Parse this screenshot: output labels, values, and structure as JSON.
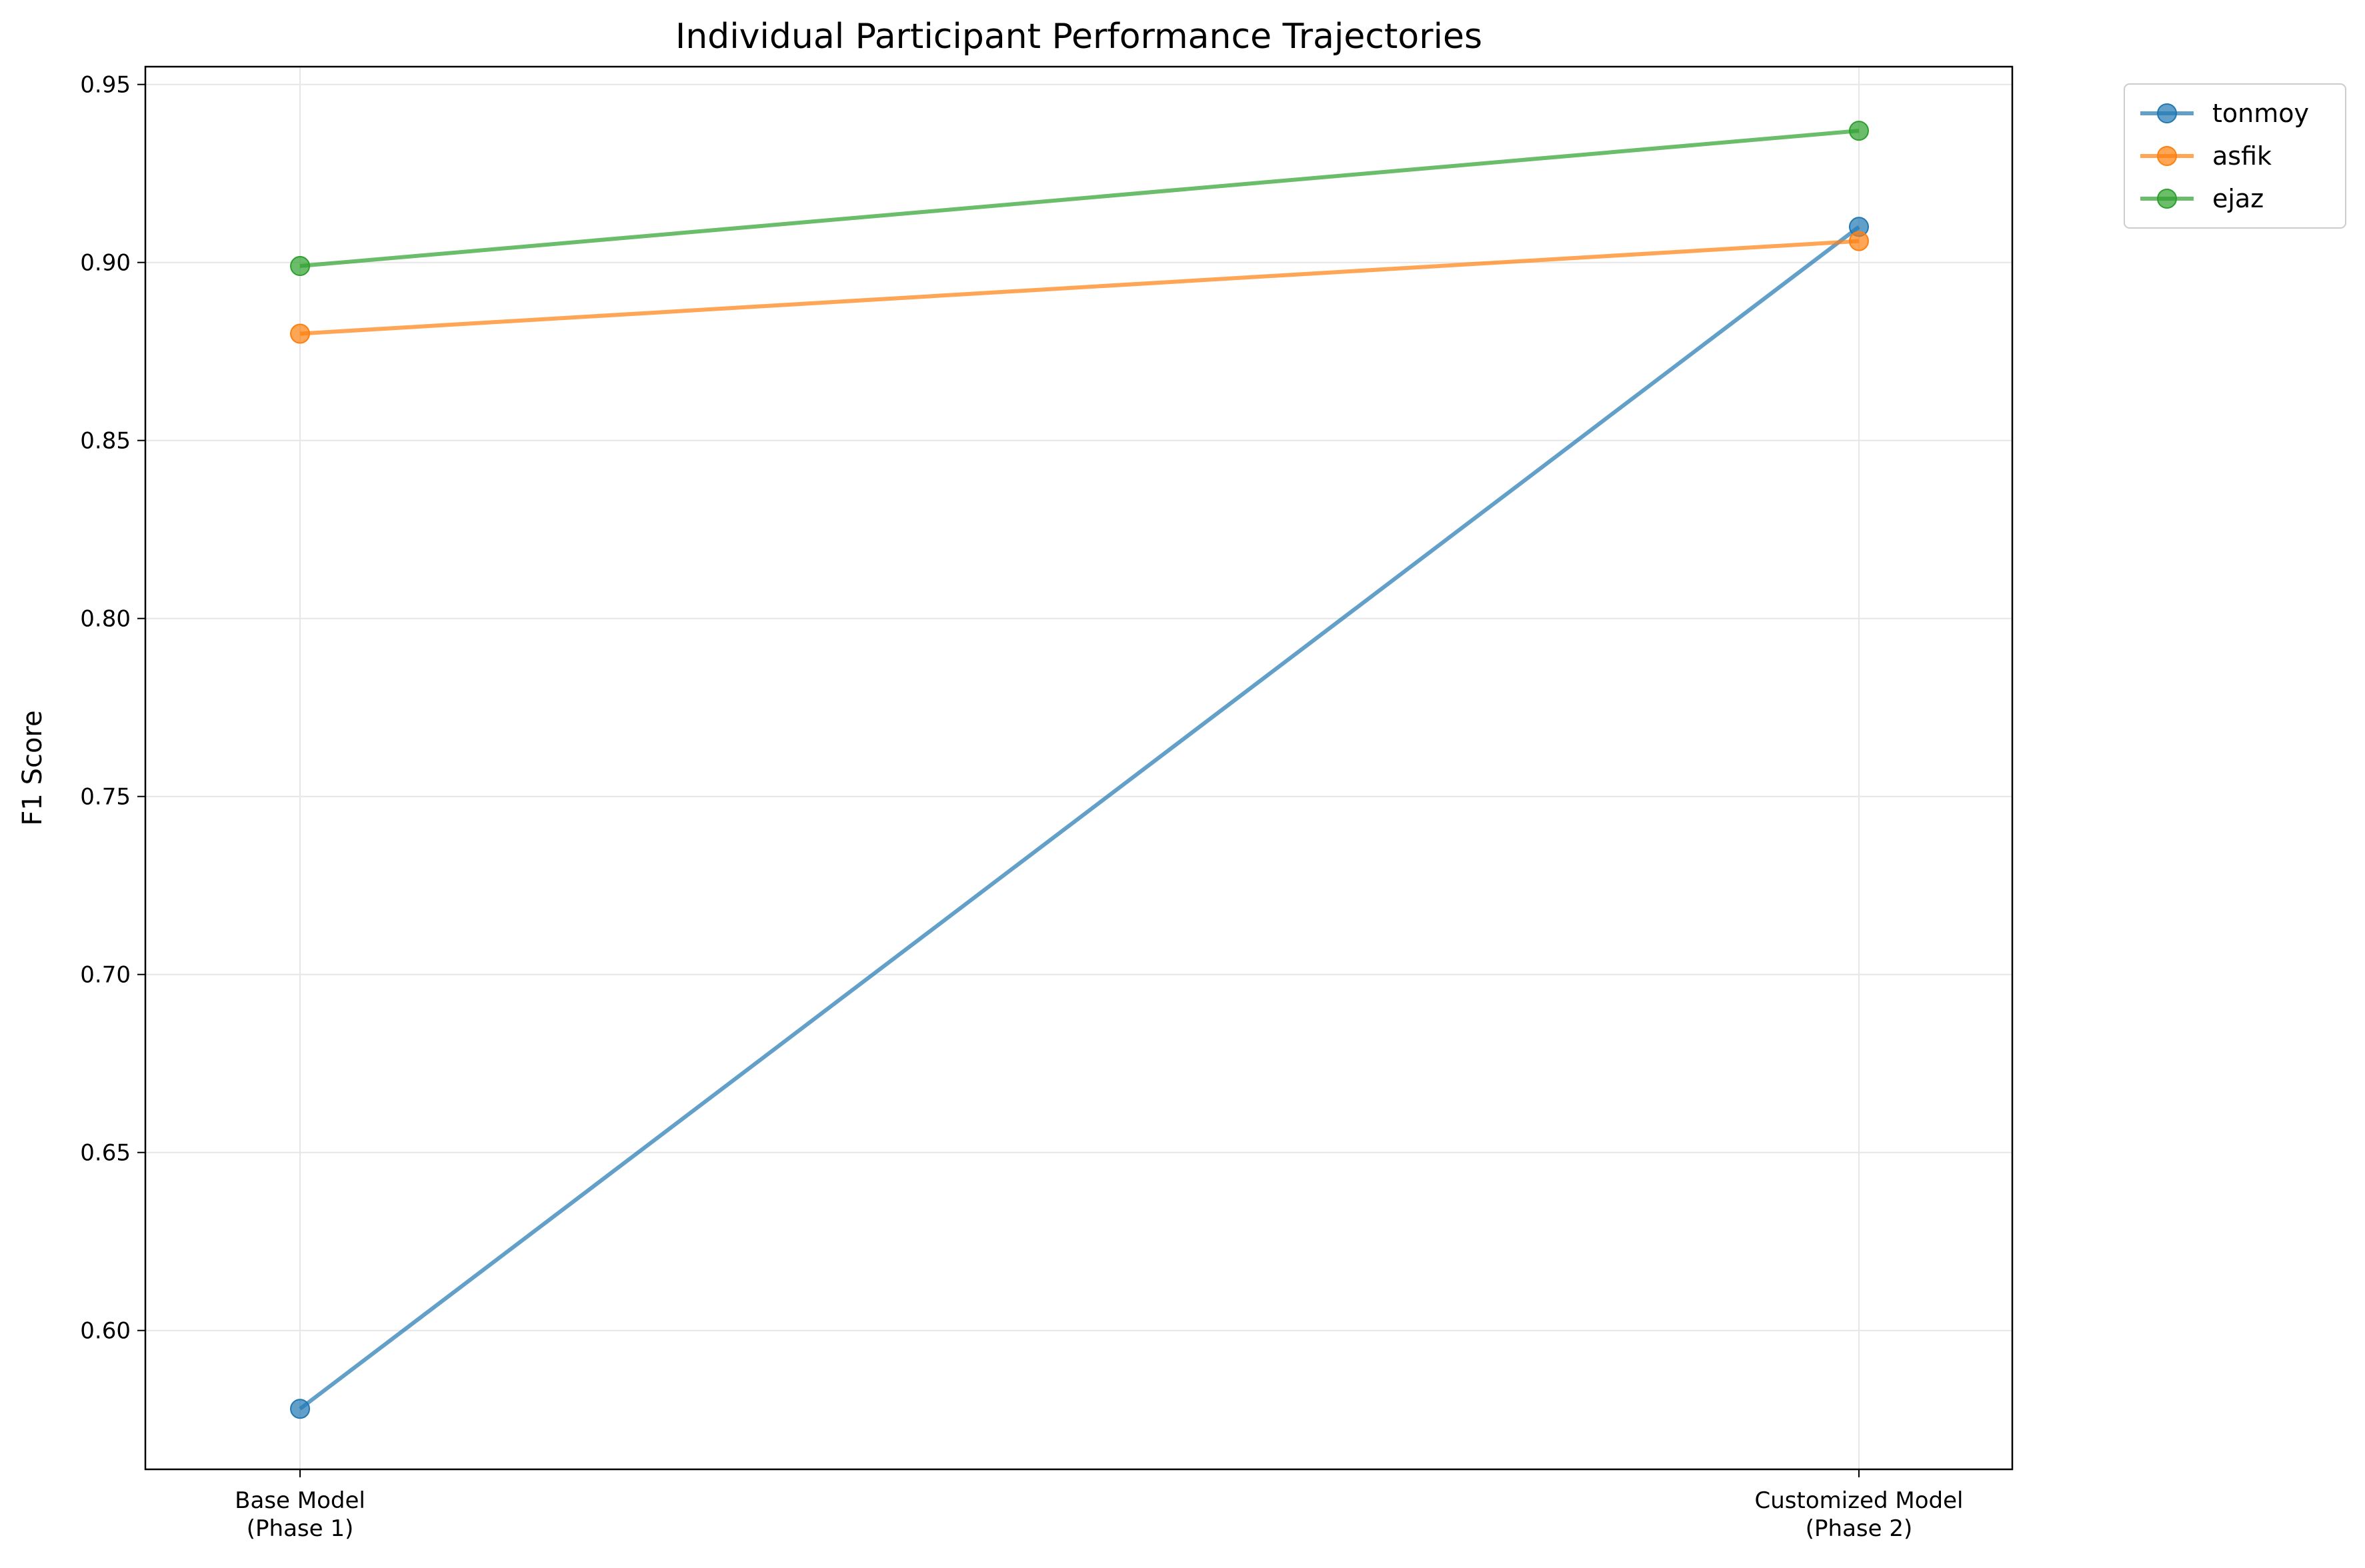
{
  "chart_data": {
    "type": "line",
    "title": "Individual Participant Performance Trajectories",
    "xlabel": "",
    "ylabel": "F1 Score",
    "categories": [
      [
        "Base Model",
        "(Phase 1)"
      ],
      [
        "Customized Model",
        "(Phase 2)"
      ]
    ],
    "ylim": [
      0.561,
      0.955
    ],
    "yticks": [
      0.6,
      0.65,
      0.7,
      0.75,
      0.8,
      0.85,
      0.9,
      0.95
    ],
    "ytick_labels": [
      "0.60",
      "0.65",
      "0.70",
      "0.75",
      "0.80",
      "0.85",
      "0.90",
      "0.95"
    ],
    "grid": true,
    "legend_position": "outside top-right",
    "series": [
      {
        "name": "tonmoy",
        "values": [
          0.578,
          0.91
        ],
        "color": "#1f77b4"
      },
      {
        "name": "asfik",
        "values": [
          0.88,
          0.906
        ],
        "color": "#ff7f0e"
      },
      {
        "name": "ejaz",
        "values": [
          0.899,
          0.937
        ],
        "color": "#2ca02c"
      }
    ]
  }
}
